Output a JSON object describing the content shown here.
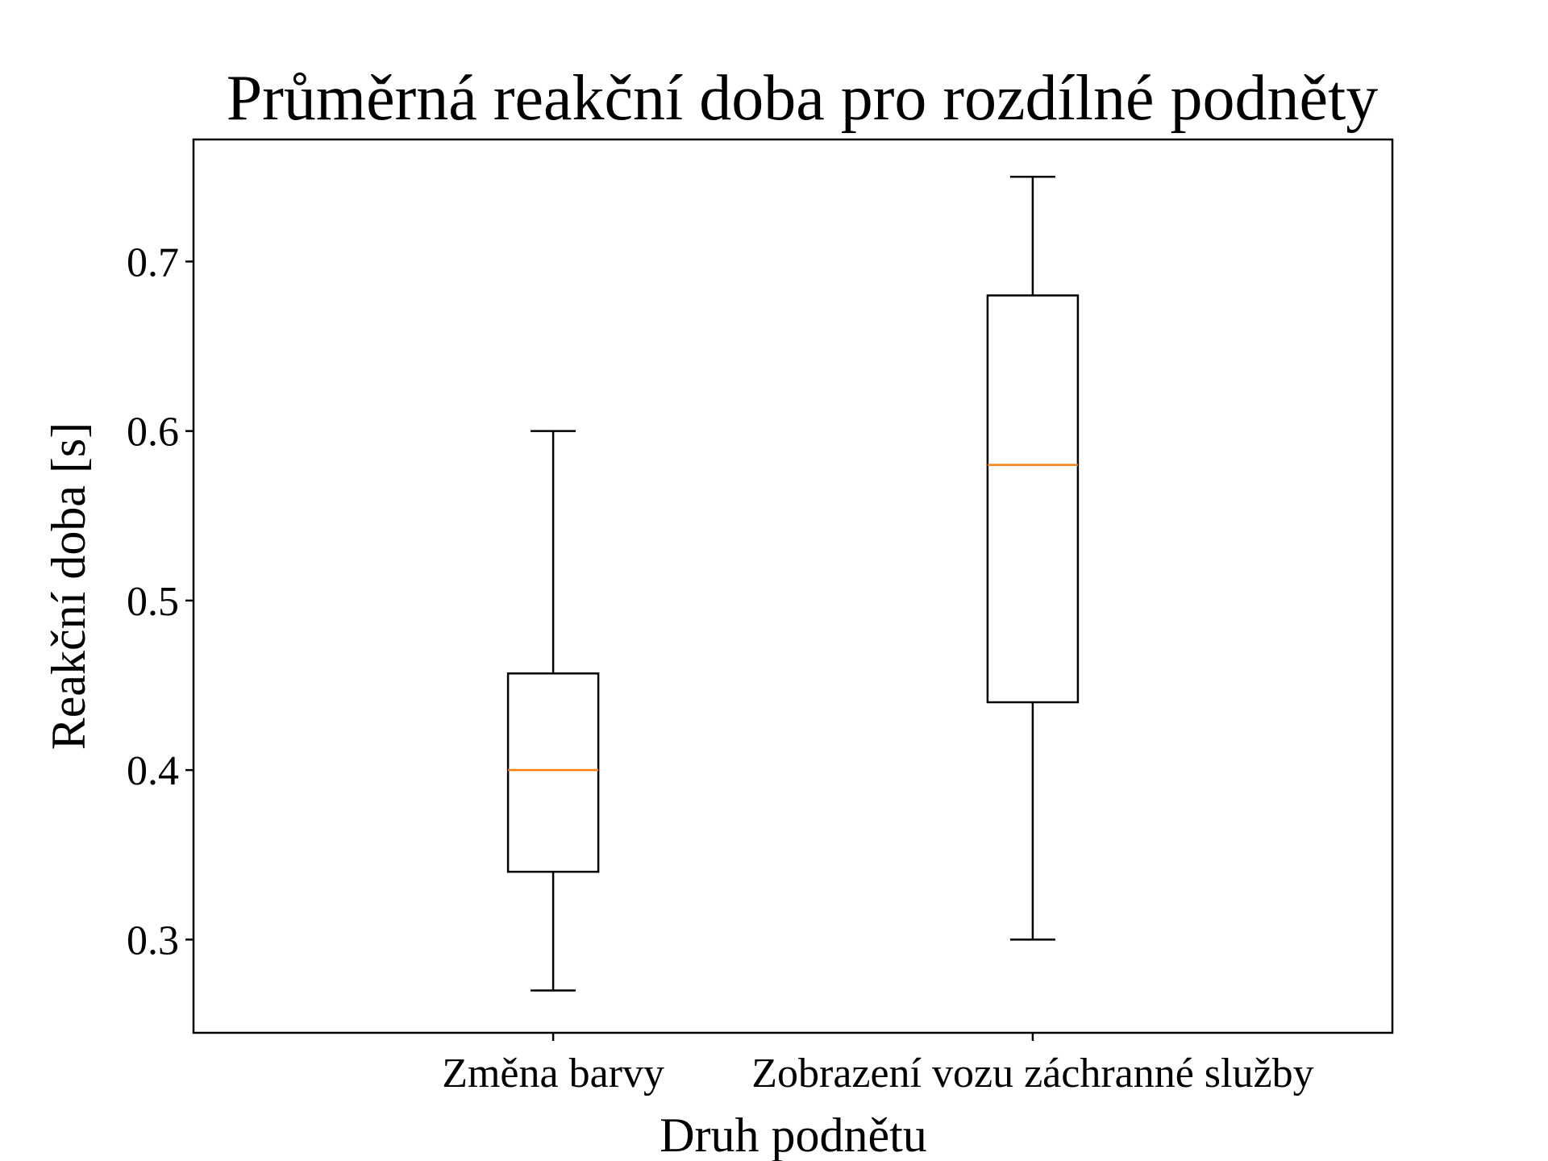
{
  "chart_data": {
    "type": "boxplot",
    "title": "Průměrná reakční doba pro rozdílné podněty",
    "xlabel": "Druh podnětu",
    "ylabel": "Reakční doba [s]",
    "ylim": [
      0.245,
      0.772
    ],
    "yticks": [
      0.3,
      0.4,
      0.5,
      0.6,
      0.7
    ],
    "ytick_labels": [
      "0.3",
      "0.4",
      "0.5",
      "0.6",
      "0.7"
    ],
    "grid": false,
    "categories": [
      "Změna barvy",
      "Zobrazení vozu záchranné služby"
    ],
    "boxes": [
      {
        "category": "Změna barvy",
        "whisker_low": 0.27,
        "q1": 0.34,
        "median": 0.4,
        "q3": 0.457,
        "whisker_high": 0.6
      },
      {
        "category": "Zobrazení vozu záchranné služby",
        "whisker_low": 0.3,
        "q1": 0.44,
        "median": 0.58,
        "q3": 0.68,
        "whisker_high": 0.75
      }
    ],
    "colors": {
      "box": "#000000",
      "median": "#ff7f0e"
    }
  }
}
